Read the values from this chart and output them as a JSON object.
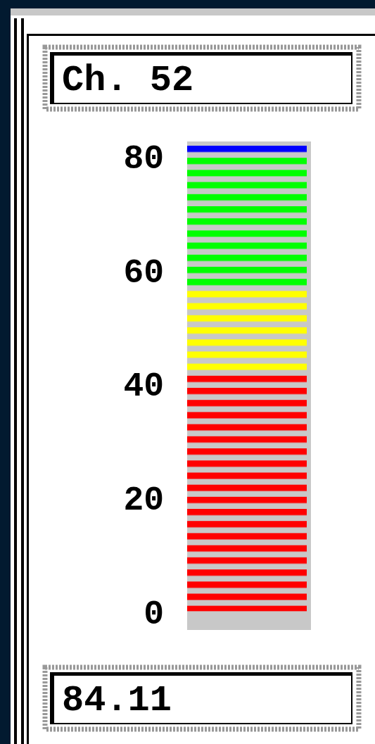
{
  "chart_data": {
    "type": "bar",
    "title": "Ch. 52",
    "categories": [
      null
    ],
    "stacked": true,
    "series": [
      {
        "color": "#ff0000",
        "values": [
          41.5
        ]
      },
      {
        "color": "#ffff00",
        "values": [
          15
        ]
      },
      {
        "color": "#00ff00",
        "values": [
          23.5
        ]
      },
      {
        "color": "#0000ff",
        "values": [
          2
        ]
      }
    ],
    "ylim": [
      -3.3,
      82.6
    ],
    "yticks": [
      0,
      20,
      40,
      60,
      80
    ],
    "annotations": [
      "84.11"
    ]
  }
}
